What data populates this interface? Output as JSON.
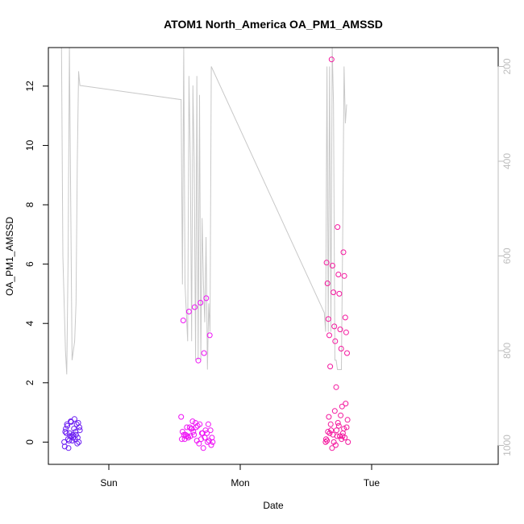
{
  "chart_data": {
    "type": "scatter",
    "title": "ATOM1 North_America OA_PM1_AMSSD",
    "xlabel": "Date",
    "ylabel": "OA_PM1_AMSSD",
    "x_ticks": [
      "Sun",
      "Mon",
      "Tue"
    ],
    "y_ticks": [
      "0",
      "2",
      "4",
      "6",
      "8",
      "10",
      "12"
    ],
    "y2_ticks": [
      "200",
      "400",
      "600",
      "800",
      "1000"
    ],
    "ylim": [
      -0.75,
      13.3
    ],
    "y2lim": [
      1040,
      160
    ],
    "y2_reversed": true,
    "grid": false,
    "colors": {
      "axis": "#000000",
      "secondary_axis": "#bdbdbd",
      "line": "#c8c8c8"
    },
    "series": [
      {
        "type": "scatter",
        "marker": "open-circle",
        "groups": [
          {
            "color": "#6a1bf2",
            "x_day_range": [
              -0.34,
              -0.22
            ],
            "values": [
              0.0,
              0.1,
              0.2,
              0.35,
              0.5,
              0.6,
              0.7,
              0.78,
              0.65,
              0.45,
              0.3,
              0.15,
              -0.05,
              -0.15,
              -0.2,
              0.05,
              0.25,
              0.4,
              0.55,
              0.68,
              0.1,
              0.0,
              0.3,
              0.2,
              0.45,
              0.15,
              0.35,
              0.05,
              0.25,
              0.6
            ]
          },
          {
            "color": "#ee12f5",
            "x_day_range": [
              0.55,
              0.79
            ],
            "values": [
              0.85,
              0.0,
              0.3,
              0.5,
              0.2,
              0.1,
              -0.1,
              0.4,
              0.6,
              0.25,
              0.15,
              0.35,
              0.05,
              -0.2,
              0.55,
              0.45,
              0.2,
              0.0,
              0.3,
              0.1,
              0.65,
              0.5,
              0.25,
              0.4,
              0.15,
              -0.05,
              0.35,
              0.2,
              0.1,
              0.6,
              0.3,
              0.05,
              0.45,
              0.25,
              0.15,
              4.85,
              4.7,
              4.55,
              4.4,
              4.1,
              3.6,
              3.0,
              2.75,
              0.7,
              0.5
            ]
          },
          {
            "color": "#f4179e",
            "x_day_range": [
              1.65,
              1.82
            ],
            "values": [
              0.0,
              0.2,
              0.4,
              0.6,
              0.75,
              0.1,
              -0.1,
              0.3,
              0.5,
              0.9,
              1.05,
              0.85,
              1.3,
              0.2,
              0.0,
              0.35,
              0.15,
              0.55,
              0.25,
              0.05,
              0.45,
              0.65,
              -0.2,
              0.1,
              0.3,
              0.2,
              0.4,
              0.0,
              1.2,
              1.85,
              2.55,
              3.0,
              3.15,
              3.4,
              3.6,
              3.7,
              3.8,
              3.9,
              4.15,
              4.2,
              5.0,
              5.05,
              5.35,
              5.6,
              5.65,
              5.95,
              6.05,
              6.4,
              7.25,
              12.9
            ]
          }
        ]
      },
      {
        "type": "line",
        "axis": "right",
        "color": "#c8c8c8",
        "x_day": [
          -0.36,
          -0.35,
          -0.33,
          -0.32,
          -0.31,
          -0.3,
          -0.28,
          -0.26,
          -0.25,
          -0.24,
          -0.23,
          -0.22,
          0.55,
          0.56,
          0.57,
          0.58,
          0.6,
          0.61,
          0.62,
          0.63,
          0.64,
          0.65,
          0.66,
          0.67,
          0.68,
          0.69,
          0.7,
          0.71,
          0.72,
          0.73,
          0.74,
          0.75,
          0.76,
          0.77,
          0.78,
          1.64,
          1.65,
          1.66,
          1.67,
          1.68,
          1.69,
          1.7,
          1.71,
          1.72,
          1.73,
          1.74,
          1.75,
          1.76,
          1.77,
          1.78,
          1.79,
          1.8,
          1.81
        ],
        "values": [
          160,
          600,
          800,
          850,
          600,
          160,
          820,
          780,
          700,
          400,
          210,
          240,
          270,
          660,
          160,
          660,
          780,
          220,
          400,
          780,
          240,
          400,
          820,
          220,
          820,
          260,
          820,
          520,
          660,
          740,
          560,
          840,
          700,
          760,
          200,
          720,
          760,
          200,
          760,
          200,
          760,
          160,
          280,
          820,
          820,
          840,
          840,
          840,
          840,
          560,
          200,
          320,
          280
        ]
      }
    ]
  }
}
